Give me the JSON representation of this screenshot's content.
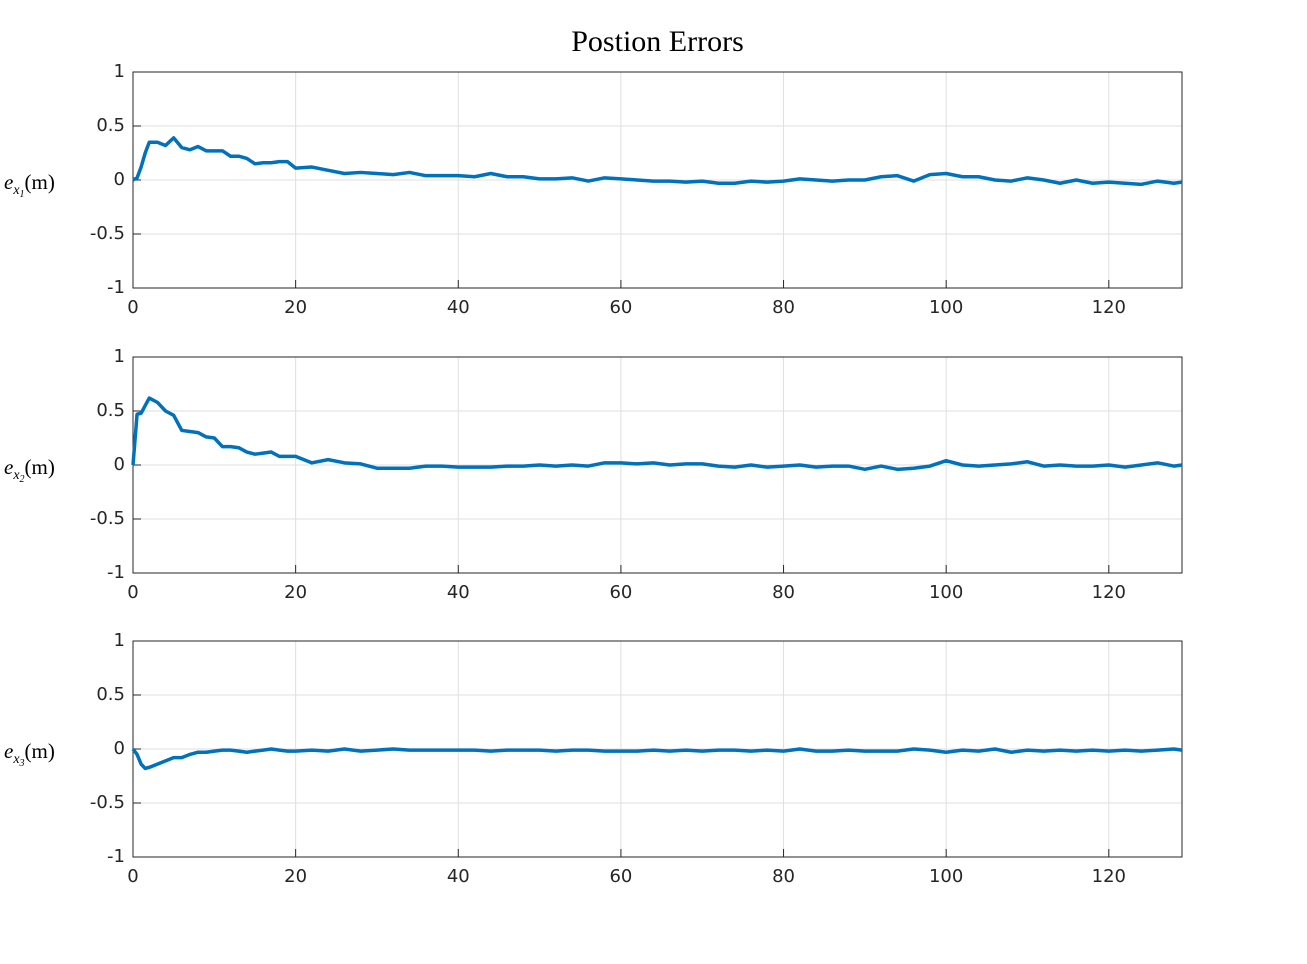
{
  "chart_data": [
    {
      "type": "line",
      "title": "Postion Errors",
      "ylabel": [
        "e",
        "x",
        "1",
        "(m)"
      ],
      "xlim": [
        0,
        129
      ],
      "xticks": [
        0,
        20,
        40,
        60,
        80,
        100,
        120
      ],
      "ylim": [
        -1,
        1
      ],
      "yticks": [
        -1,
        -0.5,
        0,
        0.5,
        1
      ],
      "grid": true,
      "x": [
        0,
        0.5,
        1,
        1.5,
        2,
        3,
        4,
        5,
        6,
        7,
        8,
        9,
        10,
        11,
        12,
        13,
        14,
        15,
        16,
        17,
        18,
        19,
        20,
        22,
        24,
        26,
        28,
        30,
        32,
        34,
        36,
        38,
        40,
        42,
        44,
        46,
        48,
        50,
        52,
        54,
        56,
        58,
        60,
        62,
        64,
        66,
        68,
        70,
        72,
        74,
        76,
        78,
        80,
        82,
        84,
        86,
        88,
        90,
        92,
        94,
        96,
        98,
        100,
        102,
        104,
        106,
        108,
        110,
        112,
        114,
        116,
        118,
        120,
        122,
        124,
        126,
        128,
        129
      ],
      "series": [
        {
          "color": "#0072bd",
          "values": [
            0,
            0.02,
            0.12,
            0.25,
            0.35,
            0.35,
            0.32,
            0.39,
            0.3,
            0.28,
            0.31,
            0.27,
            0.27,
            0.27,
            0.22,
            0.22,
            0.2,
            0.15,
            0.16,
            0.16,
            0.17,
            0.17,
            0.11,
            0.12,
            0.09,
            0.06,
            0.07,
            0.06,
            0.05,
            0.07,
            0.04,
            0.04,
            0.04,
            0.03,
            0.06,
            0.03,
            0.03,
            0.01,
            0.01,
            0.02,
            -0.01,
            0.02,
            0.01,
            0,
            -0.01,
            -0.01,
            -0.02,
            -0.01,
            -0.03,
            -0.03,
            -0.01,
            -0.02,
            -0.01,
            0.01,
            0,
            -0.01,
            0,
            0,
            0.03,
            0.04,
            -0.01,
            0.05,
            0.06,
            0.03,
            0.03,
            0,
            -0.01,
            0.02,
            0,
            -0.03,
            0,
            -0.03,
            -0.02,
            -0.03,
            -0.04,
            -0.01,
            -0.03,
            -0.02
          ]
        }
      ]
    },
    {
      "type": "line",
      "ylabel": [
        "e",
        "x",
        "2",
        "(m)"
      ],
      "xlim": [
        0,
        129
      ],
      "xticks": [
        0,
        20,
        40,
        60,
        80,
        100,
        120
      ],
      "ylim": [
        -1,
        1
      ],
      "yticks": [
        -1,
        -0.5,
        0,
        0.5,
        1
      ],
      "grid": true,
      "x": [
        0,
        0.5,
        1,
        1.5,
        2,
        3,
        4,
        5,
        6,
        7,
        8,
        9,
        10,
        11,
        12,
        13,
        14,
        15,
        16,
        17,
        18,
        19,
        20,
        22,
        24,
        26,
        28,
        30,
        32,
        34,
        36,
        38,
        40,
        42,
        44,
        46,
        48,
        50,
        52,
        54,
        56,
        58,
        60,
        62,
        64,
        66,
        68,
        70,
        72,
        74,
        76,
        78,
        80,
        82,
        84,
        86,
        88,
        90,
        92,
        94,
        96,
        98,
        100,
        102,
        104,
        106,
        108,
        110,
        112,
        114,
        116,
        118,
        120,
        122,
        124,
        126,
        128,
        129
      ],
      "series": [
        {
          "color": "#0072bd",
          "values": [
            0,
            0.47,
            0.48,
            0.55,
            0.62,
            0.58,
            0.5,
            0.46,
            0.32,
            0.31,
            0.3,
            0.26,
            0.25,
            0.17,
            0.17,
            0.16,
            0.12,
            0.1,
            0.11,
            0.12,
            0.08,
            0.08,
            0.08,
            0.02,
            0.05,
            0.02,
            0.01,
            -0.03,
            -0.03,
            -0.03,
            -0.01,
            -0.01,
            -0.02,
            -0.02,
            -0.02,
            -0.01,
            -0.01,
            0,
            -0.01,
            0,
            -0.01,
            0.02,
            0.02,
            0.01,
            0.02,
            0,
            0.01,
            0.01,
            -0.01,
            -0.02,
            0,
            -0.02,
            -0.01,
            0,
            -0.02,
            -0.01,
            -0.01,
            -0.04,
            -0.01,
            -0.04,
            -0.03,
            -0.01,
            0.04,
            0,
            -0.01,
            0,
            0.01,
            0.03,
            -0.01,
            0,
            -0.01,
            -0.01,
            0,
            -0.02,
            0,
            0.02,
            -0.01,
            0
          ]
        }
      ]
    },
    {
      "type": "line",
      "ylabel": [
        "e",
        "x",
        "3",
        "(m)"
      ],
      "xlim": [
        0,
        129
      ],
      "xticks": [
        0,
        20,
        40,
        60,
        80,
        100,
        120
      ],
      "ylim": [
        -1,
        1
      ],
      "yticks": [
        -1,
        -0.5,
        0,
        0.5,
        1
      ],
      "grid": true,
      "x": [
        0,
        0.5,
        1,
        1.5,
        2,
        3,
        4,
        5,
        6,
        7,
        8,
        9,
        10,
        11,
        12,
        13,
        14,
        15,
        16,
        17,
        18,
        19,
        20,
        22,
        24,
        26,
        28,
        30,
        32,
        34,
        36,
        38,
        40,
        42,
        44,
        46,
        48,
        50,
        52,
        54,
        56,
        58,
        60,
        62,
        64,
        66,
        68,
        70,
        72,
        74,
        76,
        78,
        80,
        82,
        84,
        86,
        88,
        90,
        92,
        94,
        96,
        98,
        100,
        102,
        104,
        106,
        108,
        110,
        112,
        114,
        116,
        118,
        120,
        122,
        124,
        126,
        128,
        129
      ],
      "series": [
        {
          "color": "#0072bd",
          "values": [
            0,
            -0.05,
            -0.14,
            -0.18,
            -0.17,
            -0.14,
            -0.11,
            -0.08,
            -0.08,
            -0.05,
            -0.03,
            -0.03,
            -0.02,
            -0.01,
            -0.01,
            -0.02,
            -0.03,
            -0.02,
            -0.01,
            0,
            -0.01,
            -0.02,
            -0.02,
            -0.01,
            -0.02,
            0,
            -0.02,
            -0.01,
            0,
            -0.01,
            -0.01,
            -0.01,
            -0.01,
            -0.01,
            -0.02,
            -0.01,
            -0.01,
            -0.01,
            -0.02,
            -0.01,
            -0.01,
            -0.02,
            -0.02,
            -0.02,
            -0.01,
            -0.02,
            -0.01,
            -0.02,
            -0.01,
            -0.01,
            -0.02,
            -0.01,
            -0.02,
            0,
            -0.02,
            -0.02,
            -0.01,
            -0.02,
            -0.02,
            -0.02,
            0,
            -0.01,
            -0.03,
            -0.01,
            -0.02,
            0,
            -0.03,
            -0.01,
            -0.02,
            -0.01,
            -0.02,
            -0.01,
            -0.02,
            -0.01,
            -0.02,
            -0.01,
            0,
            -0.01
          ]
        }
      ]
    }
  ]
}
